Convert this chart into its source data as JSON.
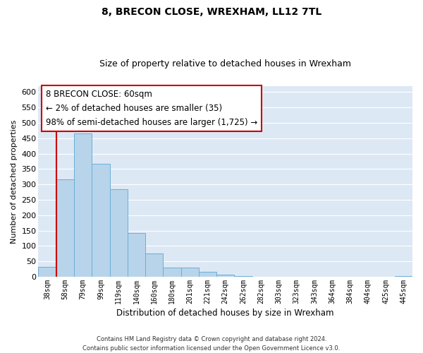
{
  "title": "8, BRECON CLOSE, WREXHAM, LL12 7TL",
  "subtitle": "Size of property relative to detached houses in Wrexham",
  "xlabel": "Distribution of detached houses by size in Wrexham",
  "ylabel": "Number of detached properties",
  "bar_labels": [
    "38sqm",
    "58sqm",
    "79sqm",
    "99sqm",
    "119sqm",
    "140sqm",
    "160sqm",
    "180sqm",
    "201sqm",
    "221sqm",
    "242sqm",
    "262sqm",
    "282sqm",
    "303sqm",
    "323sqm",
    "343sqm",
    "364sqm",
    "384sqm",
    "404sqm",
    "425sqm",
    "445sqm"
  ],
  "bar_values": [
    32,
    316,
    465,
    368,
    284,
    142,
    75,
    31,
    29,
    16,
    7,
    2,
    1,
    0,
    0,
    0,
    0,
    0,
    0,
    0,
    3
  ],
  "bar_color": "#b8d4ea",
  "bar_edge_color": "#6aaed6",
  "property_line_color": "#cc0000",
  "ylim": [
    0,
    620
  ],
  "yticks": [
    0,
    50,
    100,
    150,
    200,
    250,
    300,
    350,
    400,
    450,
    500,
    550,
    600
  ],
  "annotation_title": "8 BRECON CLOSE: 60sqm",
  "annotation_line1": "← 2% of detached houses are smaller (35)",
  "annotation_line2": "98% of semi-detached houses are larger (1,725) →",
  "footer1": "Contains HM Land Registry data © Crown copyright and database right 2024.",
  "footer2": "Contains public sector information licensed under the Open Government Licence v3.0.",
  "bg_color": "#ffffff",
  "plot_bg_color": "#dde8f5",
  "annotation_box_color": "#ffffff",
  "annotation_box_edge": "#cc0000",
  "grid_color": "#ffffff",
  "title_fontsize": 10,
  "subtitle_fontsize": 9
}
